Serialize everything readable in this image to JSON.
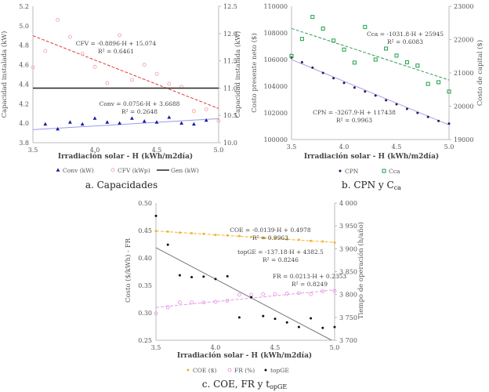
{
  "chart_data": [
    {
      "type": "scatter",
      "caption": "a. Capacidades",
      "caption_sub": "",
      "xlabel": "Irradiación solar - H (kWh/m2día)",
      "ylabel_left": "Capacidad instalada (kW)",
      "ylabel_right": "Capacidad instalada (kW)",
      "xlim": [
        3.5,
        5.0
      ],
      "xticks": [
        "3.5",
        "4.0",
        "4.5",
        "5.0"
      ],
      "ylim_left": [
        3.8,
        5.2
      ],
      "yticks_left": [
        "3.8",
        "4.0",
        "4.2",
        "4.4",
        "4.6",
        "4.8",
        "5.0",
        "5.2"
      ],
      "ylim_right": [
        10.0,
        12.5
      ],
      "yticks_right": [
        "10.0",
        "10.5",
        "11.0",
        "11.5",
        "12.0",
        "12.5"
      ],
      "legend_position": "bottom",
      "series": [
        {
          "name": "Conv (kW)",
          "axis": "left",
          "marker": "triangle",
          "color": "#1a1aa0",
          "x": [
            3.6,
            3.7,
            3.8,
            3.9,
            4.0,
            4.1,
            4.2,
            4.3,
            4.4,
            4.5,
            4.6,
            4.7,
            4.8,
            4.9
          ],
          "y": [
            3.99,
            3.94,
            4.01,
            3.99,
            4.05,
            4.01,
            4.0,
            4.05,
            4.02,
            4.01,
            4.06,
            4.0,
            3.99,
            4.03
          ],
          "trend": {
            "slope": 0.0756,
            "intercept": 3.6688,
            "color": "#9a9aee",
            "dash": false,
            "equation": "Conv = 0.0756·H + 3.6688",
            "r2": "R² = 0.2648"
          }
        },
        {
          "name": "CFV (kWp)",
          "axis": "right",
          "marker": "circle-open",
          "color": "#f4a6b0",
          "x": [
            3.5,
            3.6,
            3.7,
            3.8,
            3.9,
            4.0,
            4.1,
            4.2,
            4.3,
            4.4,
            4.5,
            4.6,
            4.7,
            4.8,
            4.9,
            5.0
          ],
          "y": [
            11.38,
            11.68,
            12.25,
            11.94,
            11.63,
            11.39,
            11.09,
            11.97,
            11.15,
            11.43,
            11.26,
            11.08,
            11.02,
            10.58,
            10.61,
            10.4
          ],
          "trend": {
            "slope": -0.8896,
            "intercept": 15.074,
            "color": "#e03a3a",
            "dash": true,
            "equation": "CFV = -0.8896·H + 15.074",
            "r2": "R² = 0.6461"
          }
        },
        {
          "name": "Gen (kW)",
          "axis": "right",
          "marker": "line",
          "color": "#333333",
          "x": [
            3.5,
            5.0
          ],
          "y": [
            11.0,
            11.0
          ]
        }
      ]
    },
    {
      "type": "scatter",
      "caption": "b. CPN y C",
      "caption_sub": "ca",
      "xlabel": "Irradiación solar - H (kWh/m2día)",
      "ylabel_left": "Costo presente neto ($)",
      "ylabel_right": "Costo de capital ($)",
      "xlim": [
        3.5,
        5.0
      ],
      "xticks": [
        "3.5",
        "4.0",
        "4.5",
        "5.0"
      ],
      "ylim_left": [
        100000,
        110000
      ],
      "yticks_left": [
        "100000",
        "102000",
        "104000",
        "106000",
        "108000",
        "110000"
      ],
      "ylim_right": [
        19000,
        23000
      ],
      "yticks_right": [
        "19000",
        "20000",
        "21000",
        "22000",
        "23000"
      ],
      "legend_position": "bottom",
      "series": [
        {
          "name": "CPN",
          "axis": "left",
          "marker": "dot",
          "color": "#2a1a5e",
          "x": [
            3.5,
            3.6,
            3.7,
            3.8,
            3.9,
            4.0,
            4.1,
            4.2,
            4.3,
            4.4,
            4.5,
            4.6,
            4.7,
            4.8,
            4.9,
            5.0
          ],
          "y": [
            106150,
            105800,
            105400,
            105000,
            104600,
            104250,
            103900,
            103600,
            103300,
            102950,
            102650,
            102300,
            102000,
            101700,
            101400,
            101200
          ],
          "trend": {
            "slope": -3267.9,
            "intercept": 117438,
            "color": "#b49ae0",
            "dash": false,
            "equation": "CPN = -3267.9·H + 117438",
            "r2": "R² = 0.9963"
          }
        },
        {
          "name": "Cca",
          "axis": "right",
          "marker": "square-open",
          "color": "#1f9e4a",
          "x": [
            3.5,
            3.6,
            3.7,
            3.8,
            3.9,
            4.0,
            4.1,
            4.2,
            4.3,
            4.4,
            4.5,
            4.6,
            4.7,
            4.8,
            4.9,
            5.0
          ],
          "y": [
            21510,
            22020,
            22680,
            22330,
            21970,
            21700,
            21310,
            22380,
            21400,
            21730,
            21520,
            21320,
            21220,
            20670,
            20720,
            20440
          ],
          "trend": {
            "slope": -1031.8,
            "intercept": 25945,
            "color": "#2e9e5a",
            "dash": true,
            "equation": "Cca = -1031.8·H + 25945",
            "r2": "R² = 0.6083"
          }
        }
      ]
    },
    {
      "type": "scatter",
      "caption": "c. COE, FR y t",
      "caption_sub": "opGE",
      "xlabel": "Irradiación solar - H (kWh/m2día)",
      "ylabel_left": "Costo ($/kWh) - FR",
      "ylabel_right": "Tiempo de operación (h/año)",
      "xlim": [
        3.5,
        5.0
      ],
      "xticks": [
        "3.5",
        "4.0",
        "4.5",
        "5.0"
      ],
      "ylim_left": [
        0.25,
        0.5
      ],
      "yticks_left": [
        "0.25",
        "0.30",
        "0.35",
        "0.40",
        "0.45",
        "0.50"
      ],
      "ylim_right": [
        3700,
        4000
      ],
      "yticks_right": [
        "3 700",
        "3 750",
        "3 800",
        "3 850",
        "3 900",
        "3 950",
        "4 000"
      ],
      "legend_position": "bottom",
      "series": [
        {
          "name": "COE ($)",
          "axis": "left",
          "marker": "dot",
          "color": "#f0b429",
          "x": [
            3.5,
            3.6,
            3.7,
            3.8,
            3.9,
            4.0,
            4.1,
            4.2,
            4.3,
            4.4,
            4.5,
            4.6,
            4.7,
            4.8,
            4.9,
            5.0
          ],
          "y": [
            0.449,
            0.448,
            0.446,
            0.445,
            0.444,
            0.442,
            0.441,
            0.44,
            0.438,
            0.437,
            0.436,
            0.434,
            0.433,
            0.431,
            0.43,
            0.428
          ],
          "trend": {
            "slope": -0.0139,
            "intercept": 0.4978,
            "color": "#f0b429",
            "dash": true,
            "equation": "COE = -0.0139·H + 0.4978",
            "r2": "R² = 0.9963"
          }
        },
        {
          "name": "FR (%)",
          "axis": "left",
          "marker": "circle-open",
          "color": "#e79be8",
          "x": [
            3.5,
            3.6,
            3.7,
            3.8,
            3.9,
            4.0,
            4.1,
            4.2,
            4.3,
            4.4,
            4.5,
            4.6,
            4.7,
            4.8,
            4.9,
            5.0
          ],
          "y": [
            0.299,
            0.31,
            0.319,
            0.319,
            0.319,
            0.32,
            0.322,
            0.333,
            0.333,
            0.334,
            0.334,
            0.335,
            0.336,
            0.334,
            0.339,
            0.34
          ],
          "trend": {
            "slope": 0.0213,
            "intercept": 0.2353,
            "color": "#e79be8",
            "dash": true,
            "equation": "FR = 0.0213·H + 0.2353",
            "r2": "R² = 0.8249"
          }
        },
        {
          "name": "topGE",
          "axis": "right",
          "marker": "dot",
          "color": "#111111",
          "x": [
            3.5,
            3.6,
            3.7,
            3.8,
            3.9,
            4.0,
            4.1,
            4.2,
            4.3,
            4.4,
            4.5,
            4.6,
            4.7,
            4.8,
            4.9,
            5.0
          ],
          "y": [
            3972,
            3909,
            3842,
            3838,
            3839,
            3834,
            3840,
            3750,
            3794,
            3753,
            3747,
            3739,
            3729,
            3748,
            3727,
            3729
          ],
          "trend": {
            "slope": -137.18,
            "intercept": 4382.5,
            "color": "#777777",
            "dash": false,
            "equation": "topGE = -137.18·H + 4382.5",
            "r2": "R² = 0.8246"
          }
        }
      ]
    }
  ]
}
